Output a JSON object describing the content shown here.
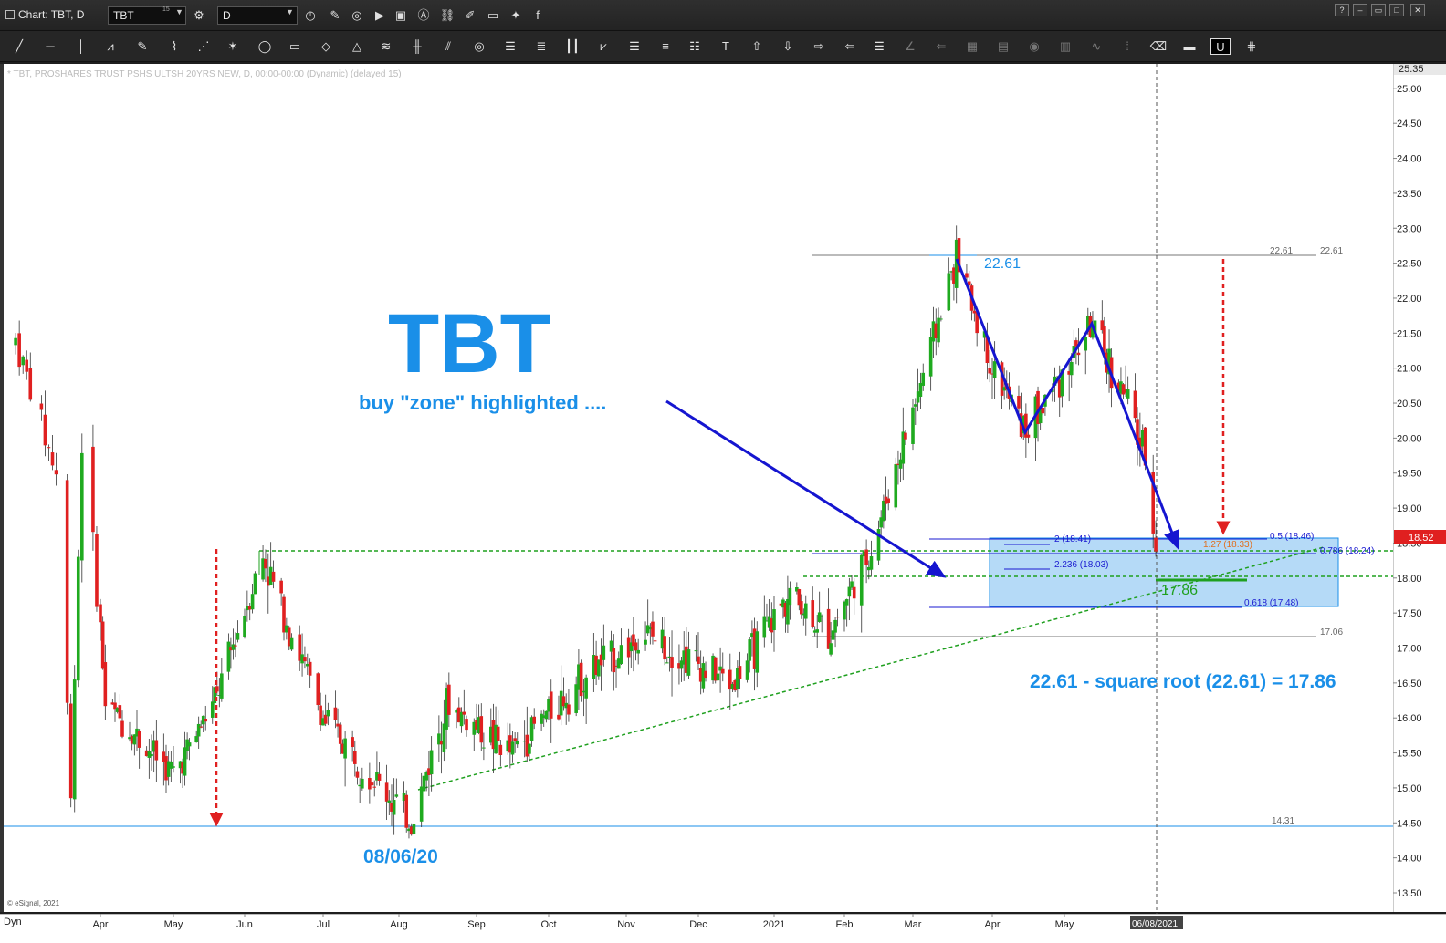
{
  "window": {
    "title": "Chart: TBT, D",
    "symbol": "TBT",
    "symbol_superscript": "15",
    "interval": "D"
  },
  "study_label": "* TBT, PROSHARES TRUST PSHS ULTSH 20YRS NEW, D, 00:00-00:00 (Dynamic) (delayed 15)",
  "copyright": "© eSignal, 2021",
  "dyn_label": "Dyn",
  "annotations": {
    "big_title": "TBT",
    "subtitle": "buy \"zone\" highlighted ....",
    "date_label": "08/06/20",
    "high_label": "22.61",
    "target_label": "17.86",
    "formula": "22.61 - square root (22.61) = 17.86",
    "right_high_a": "22.61",
    "right_high_b": "22.61",
    "low_level": "14.31",
    "support_level": "17.06"
  },
  "fib_labels": [
    {
      "text": "2 (18.41)",
      "color": "#1a1ad0"
    },
    {
      "text": "2.236 (18.03)",
      "color": "#1a1ad0"
    },
    {
      "text": "0.5 (18.46)",
      "color": "#1a1ad0"
    },
    {
      "text": "1.27 (18.33)",
      "color": "#e07020"
    },
    {
      "text": "0.786 (18.24)",
      "color": "#1a1ad0"
    },
    {
      "text": "0.618 (17.48)",
      "color": "#1a1ad0"
    }
  ],
  "price_axis": {
    "top_label": "25.35",
    "labels": [
      "25.00",
      "24.50",
      "24.00",
      "23.50",
      "23.00",
      "22.50",
      "22.00",
      "21.50",
      "21.00",
      "20.50",
      "20.00",
      "19.50",
      "19.00",
      "18.50",
      "18.00",
      "17.50",
      "17.00",
      "16.50",
      "16.00",
      "15.50",
      "15.00",
      "14.50",
      "14.00",
      "13.50"
    ],
    "current_price": "18.52"
  },
  "date_axis": {
    "labels": [
      "Apr",
      "May",
      "Jun",
      "Jul",
      "Aug",
      "Sep",
      "Oct",
      "Nov",
      "Dec",
      "2021",
      "Feb",
      "Mar",
      "Apr",
      "May"
    ],
    "cursor_date": "06/08/2021"
  },
  "colors": {
    "up": "#1faa1f",
    "down": "#e02020",
    "accent_blue": "#1a8fe8",
    "arrow_blue": "#1515d0",
    "zone_fill": "#a8d4f6",
    "trend_green": "#1fa01f",
    "current_price_bg": "#e02020"
  },
  "chart_data": {
    "type": "candlestick",
    "title": "TBT",
    "y_range": [
      13.2,
      25.35
    ],
    "price_path": [
      {
        "date": "2020-03-09",
        "close": 21.4
      },
      {
        "date": "2020-03-20",
        "close": 19.5
      },
      {
        "date": "2020-03-24",
        "close": 15.0
      },
      {
        "date": "2020-03-27",
        "close": 20.0
      },
      {
        "date": "2020-04-03",
        "close": 16.2
      },
      {
        "date": "2020-05-01",
        "close": 15.2
      },
      {
        "date": "2020-05-20",
        "close": 16.3
      },
      {
        "date": "2020-06-08",
        "close": 18.3
      },
      {
        "date": "2020-07-01",
        "close": 16.0
      },
      {
        "date": "2020-08-06",
        "close": 14.5
      },
      {
        "date": "2020-08-20",
        "close": 16.2
      },
      {
        "date": "2020-09-15",
        "close": 15.5
      },
      {
        "date": "2020-10-15",
        "close": 16.6
      },
      {
        "date": "2020-11-09",
        "close": 17.2
      },
      {
        "date": "2020-12-15",
        "close": 16.5
      },
      {
        "date": "2021-01-08",
        "close": 17.8
      },
      {
        "date": "2021-01-25",
        "close": 17.2
      },
      {
        "date": "2021-02-12",
        "close": 18.4
      },
      {
        "date": "2021-03-01",
        "close": 20.4
      },
      {
        "date": "2021-03-18",
        "close": 22.61
      },
      {
        "date": "2021-04-01",
        "close": 21.0
      },
      {
        "date": "2021-04-15",
        "close": 20.1
      },
      {
        "date": "2021-05-12",
        "close": 21.6
      },
      {
        "date": "2021-05-28",
        "close": 20.5
      },
      {
        "date": "2021-06-04",
        "close": 19.7
      },
      {
        "date": "2021-06-08",
        "close": 18.52
      }
    ],
    "levels": {
      "swing_high": 22.61,
      "swing_low": 14.31,
      "target": 17.86,
      "support": 17.06,
      "resistance": 18.3,
      "buy_zone": [
        17.48,
        18.46
      ]
    }
  }
}
